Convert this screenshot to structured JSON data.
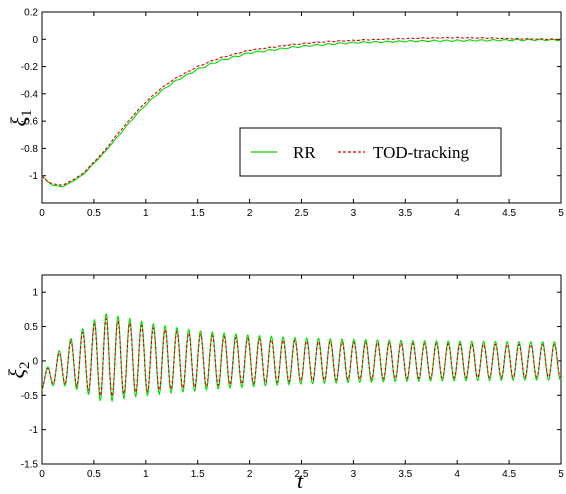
{
  "chart_data": [
    {
      "type": "line",
      "ylabel": "ξ",
      "ylabel_sub": "1",
      "xlim": [
        0,
        5
      ],
      "ylim": [
        -1.2,
        0.2
      ],
      "xticks": [
        "0",
        "0.5",
        "1",
        "1.5",
        "2",
        "2.5",
        "3",
        "3.5",
        "4",
        "4.5",
        "5"
      ],
      "yticks": [
        "0.2",
        "0",
        "-0.2",
        "-0.4",
        "-0.6",
        "-0.8",
        "-1"
      ],
      "legend": {
        "position": "lower-right",
        "entries": [
          "RR",
          "TOD-tracking"
        ]
      },
      "series": [
        {
          "name": "RR",
          "color": "#00dd00",
          "style": "solid",
          "x": [
            0,
            0.05,
            0.1,
            0.2,
            0.3,
            0.4,
            0.5,
            0.6,
            0.7,
            0.8,
            0.9,
            1.0,
            1.1,
            1.2,
            1.3,
            1.4,
            1.5,
            1.6,
            1.7,
            1.8,
            1.9,
            2.0,
            2.2,
            2.4,
            2.6,
            2.8,
            3.0,
            3.25,
            3.5,
            3.75,
            4.0,
            4.25,
            4.5,
            4.75,
            5.0
          ],
          "y": [
            -1.0,
            -1.04,
            -1.07,
            -1.08,
            -1.04,
            -0.99,
            -0.91,
            -0.83,
            -0.74,
            -0.65,
            -0.56,
            -0.48,
            -0.41,
            -0.35,
            -0.3,
            -0.26,
            -0.22,
            -0.19,
            -0.16,
            -0.14,
            -0.12,
            -0.1,
            -0.08,
            -0.06,
            -0.045,
            -0.035,
            -0.025,
            -0.02,
            -0.015,
            -0.012,
            -0.01,
            -0.008,
            -0.006,
            -0.004,
            -0.005
          ]
        },
        {
          "name": "TOD-tracking",
          "color": "#dd0000",
          "style": "dashed",
          "x": [
            0,
            0.05,
            0.1,
            0.2,
            0.3,
            0.4,
            0.5,
            0.6,
            0.7,
            0.8,
            0.9,
            1.0,
            1.1,
            1.2,
            1.3,
            1.4,
            1.5,
            1.6,
            1.7,
            1.8,
            1.9,
            2.0,
            2.2,
            2.4,
            2.6,
            2.8,
            3.0,
            3.25,
            3.5,
            3.75,
            4.0,
            4.25,
            4.5,
            4.75,
            5.0
          ],
          "y": [
            -1.0,
            -1.04,
            -1.06,
            -1.07,
            -1.03,
            -0.98,
            -0.9,
            -0.82,
            -0.72,
            -0.63,
            -0.54,
            -0.46,
            -0.39,
            -0.33,
            -0.28,
            -0.24,
            -0.2,
            -0.17,
            -0.14,
            -0.12,
            -0.1,
            -0.08,
            -0.06,
            -0.04,
            -0.025,
            -0.015,
            -0.008,
            0.0,
            0.005,
            0.01,
            0.012,
            0.01,
            0.005,
            0.002,
            0.0
          ]
        }
      ]
    },
    {
      "type": "line",
      "ylabel": "ξ",
      "ylabel_sub": "2",
      "xlabel": "t",
      "xlim": [
        0,
        5
      ],
      "ylim": [
        -1.5,
        1.25
      ],
      "xticks": [
        "0",
        "0.5",
        "1",
        "1.5",
        "2",
        "2.5",
        "3",
        "3.5",
        "4",
        "4.5",
        "5"
      ],
      "yticks": [
        "1",
        "0.5",
        "0",
        "-0.5",
        "-1",
        "-1.5"
      ],
      "series": [
        {
          "name": "RR",
          "color": "#00dd00",
          "style": "solid",
          "model": {
            "offset_start": -0.35,
            "offset_decay": 1.5,
            "amp_start": 0.1,
            "amp_peak": 0.65,
            "amp_end": 0.27,
            "peak_x": 0.6,
            "freq": 8.8
          }
        },
        {
          "name": "TOD-tracking",
          "color": "#dd0000",
          "style": "dashed",
          "model": {
            "offset_start": -0.35,
            "offset_decay": 1.5,
            "amp_start": 0.08,
            "amp_peak": 0.58,
            "amp_end": 0.23,
            "peak_x": 0.6,
            "freq": 8.8
          }
        }
      ]
    }
  ]
}
